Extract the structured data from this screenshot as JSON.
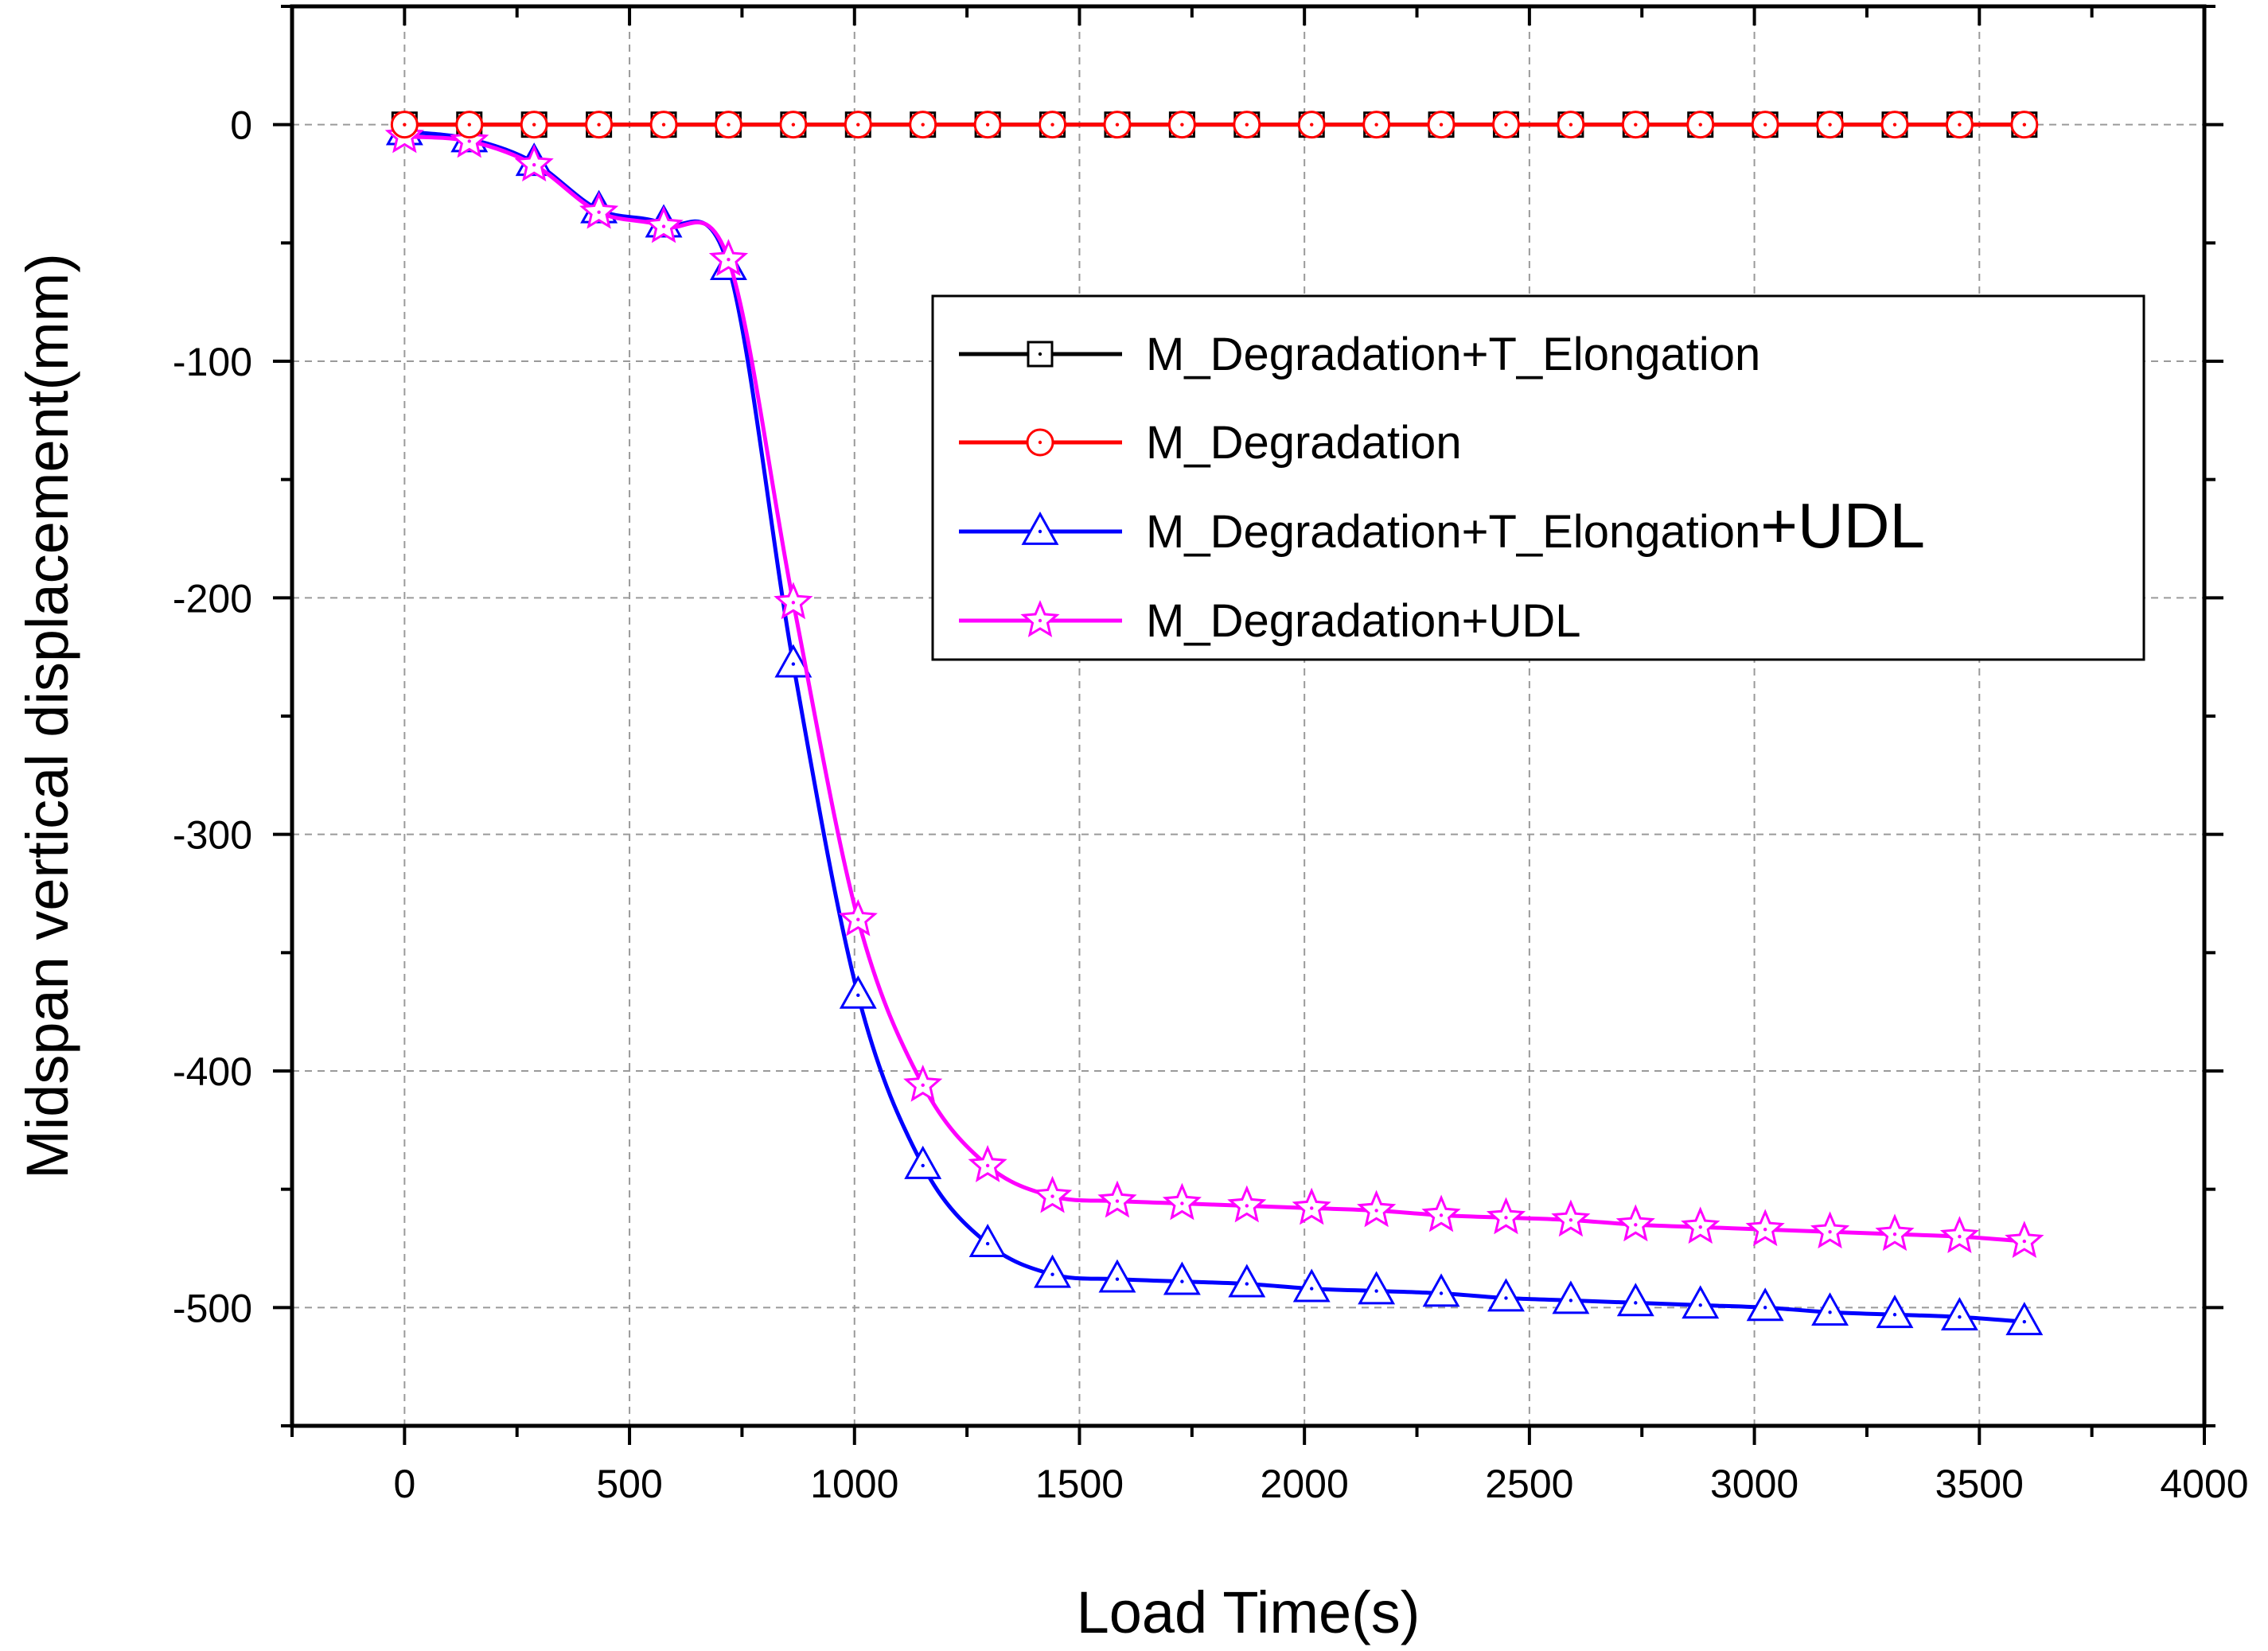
{
  "chart_data": {
    "type": "line",
    "title": "",
    "xlabel": "Load Time(s)",
    "ylabel": "Midspan vertical displacement(mm)",
    "xlim": [
      -250,
      4000
    ],
    "ylim": [
      -550,
      50
    ],
    "xticks": [
      0,
      500,
      1000,
      1500,
      2000,
      2500,
      3000,
      3500,
      4000
    ],
    "yticks": [
      0,
      -100,
      -200,
      -300,
      -400,
      -500
    ],
    "grid": true,
    "legend_position": "top-right",
    "series": [
      {
        "name": "M_Degradation+T_Elongation",
        "color": "#000000",
        "marker": "square",
        "x": [
          0,
          144,
          288,
          432,
          576,
          720,
          864,
          1008,
          1152,
          1296,
          1440,
          1584,
          1728,
          1872,
          2016,
          2160,
          2304,
          2448,
          2592,
          2736,
          2880,
          3024,
          3168,
          3312,
          3456,
          3600
        ],
        "y": [
          0,
          0,
          0,
          0,
          0,
          0,
          0,
          0,
          0,
          0,
          0,
          0,
          0,
          0,
          0,
          0,
          0,
          0,
          0,
          0,
          0,
          0,
          0,
          0,
          0,
          0
        ]
      },
      {
        "name": "M_Degradation",
        "color": "#ff0000",
        "marker": "circle",
        "x": [
          0,
          144,
          288,
          432,
          576,
          720,
          864,
          1008,
          1152,
          1296,
          1440,
          1584,
          1728,
          1872,
          2016,
          2160,
          2304,
          2448,
          2592,
          2736,
          2880,
          3024,
          3168,
          3312,
          3456,
          3600
        ],
        "y": [
          0,
          0,
          0,
          0,
          0,
          0,
          0,
          0,
          0,
          0,
          0,
          0,
          0,
          0,
          0,
          0,
          0,
          0,
          0,
          0,
          0,
          0,
          0,
          0,
          0,
          0
        ]
      },
      {
        "name": "M_Degradation+T_Elongation",
        "name_suffix": "+UDL",
        "color": "#0000ff",
        "marker": "triangle",
        "x": [
          0,
          144,
          288,
          432,
          576,
          720,
          864,
          1008,
          1152,
          1296,
          1440,
          1584,
          1728,
          1872,
          2016,
          2160,
          2304,
          2448,
          2592,
          2736,
          2880,
          3024,
          3168,
          3312,
          3456,
          3600
        ],
        "y": [
          -3,
          -6,
          -16,
          -36,
          -42,
          -60,
          -228,
          -368,
          -440,
          -473,
          -486,
          -488,
          -489,
          -490,
          -492,
          -493,
          -494,
          -496,
          -497,
          -498,
          -499,
          -500,
          -502,
          -503,
          -504,
          -506
        ]
      },
      {
        "name": "M_Degradation+UDL",
        "color": "#ff00ff",
        "marker": "star",
        "x": [
          0,
          144,
          288,
          432,
          576,
          720,
          864,
          1008,
          1152,
          1296,
          1440,
          1584,
          1728,
          1872,
          2016,
          2160,
          2304,
          2448,
          2592,
          2736,
          2880,
          3024,
          3168,
          3312,
          3456,
          3600
        ],
        "y": [
          -5,
          -7,
          -17,
          -37,
          -43,
          -57,
          -202,
          -336,
          -406,
          -440,
          -453,
          -455,
          -456,
          -457,
          -458,
          -459,
          -461,
          -462,
          -463,
          -465,
          -466,
          -467,
          -468,
          -469,
          -470,
          -472
        ]
      }
    ]
  }
}
